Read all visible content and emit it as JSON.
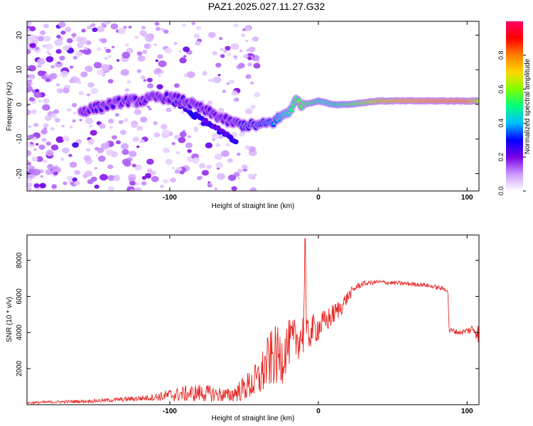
{
  "figure": {
    "title": "PAZ1.2025.027.11.27.G32"
  },
  "chart_data": [
    {
      "type": "heatmap",
      "title": "PAZ1.2025.027.11.27.G32",
      "xlabel": "Height of straight line (km)",
      "ylabel": "Frequency (Hz)",
      "xlim": [
        -196,
        108
      ],
      "ylim": [
        -25,
        24
      ],
      "x_ticks": [
        -100,
        0,
        100
      ],
      "y_ticks": [
        -20,
        -10,
        0,
        10,
        20
      ],
      "colorbar": {
        "label": "Normalized spectral amplitude",
        "range": [
          0,
          1
        ],
        "ticks": [
          0.0,
          0.2,
          0.4,
          0.6,
          0.8
        ],
        "colormap": [
          "#ffffff",
          "#cc99ff",
          "#7a00e6",
          "#0000ff",
          "#00bfff",
          "#00ff7f",
          "#7fff00",
          "#ffd700",
          "#ff8000",
          "#ff0000",
          "#ff0066"
        ]
      },
      "ridge": {
        "x": [
          -160,
          -150,
          -140,
          -130,
          -120,
          -110,
          -100,
          -90,
          -80,
          -70,
          -60,
          -50,
          -40,
          -30,
          -20,
          -15,
          -10,
          0,
          10,
          20,
          40,
          60,
          80,
          100,
          108
        ],
        "y": [
          -2,
          -1,
          0,
          1,
          1,
          2,
          2,
          1,
          -1,
          -3,
          -5,
          -6,
          -6,
          -5,
          -2,
          1,
          0,
          1,
          0,
          0,
          1,
          1,
          1,
          1,
          1
        ],
        "amplitude": [
          0.25,
          0.3,
          0.28,
          0.3,
          0.3,
          0.3,
          0.3,
          0.3,
          0.3,
          0.3,
          0.32,
          0.35,
          0.38,
          0.45,
          0.55,
          0.62,
          0.65,
          0.55,
          0.55,
          0.6,
          0.75,
          0.82,
          0.85,
          0.85,
          0.7
        ]
      },
      "secondary_ridge": {
        "x": [
          -100,
          -90,
          -80,
          -70,
          -60,
          -55
        ],
        "y": [
          1,
          -1,
          -4,
          -7,
          -9,
          -11
        ]
      },
      "grid": false
    },
    {
      "type": "line",
      "xlabel": "Height of straight line (km)",
      "ylabel": "SNR (10 * v/v)",
      "xlim": [
        -196,
        108
      ],
      "ylim": [
        0,
        9400
      ],
      "x_ticks": [
        -100,
        0,
        100
      ],
      "y_ticks": [
        2000,
        4000,
        6000,
        8000
      ],
      "series": [
        {
          "color": "#e8231f",
          "x": [
            -196,
            -180,
            -160,
            -140,
            -120,
            -110,
            -100,
            -90,
            -80,
            -70,
            -60,
            -50,
            -40,
            -35,
            -30,
            -25,
            -20,
            -15,
            -12,
            -10,
            -9,
            -8,
            -5,
            0,
            5,
            10,
            15,
            20,
            25,
            30,
            40,
            50,
            60,
            70,
            80,
            85,
            87,
            88,
            90,
            95,
            100,
            105,
            108
          ],
          "y": [
            100,
            150,
            180,
            250,
            350,
            420,
            520,
            600,
            650,
            600,
            500,
            900,
            1400,
            2200,
            2700,
            2600,
            3400,
            3600,
            3800,
            4000,
            9200,
            3600,
            4100,
            4300,
            4600,
            5000,
            5400,
            6000,
            6500,
            6700,
            6800,
            6750,
            6700,
            6650,
            6500,
            6400,
            6350,
            4100,
            4100,
            4000,
            4100,
            4200,
            3900
          ],
          "noise_amplitude": [
            60,
            80,
            90,
            110,
            150,
            200,
            350,
            450,
            500,
            450,
            400,
            700,
            1100,
            1500,
            1700,
            1600,
            1300,
            1200,
            1200,
            1300,
            0,
            1100,
            900,
            800,
            700,
            600,
            500,
            350,
            200,
            150,
            120,
            120,
            120,
            120,
            120,
            120,
            120,
            150,
            150,
            150,
            180,
            400,
            600
          ]
        }
      ],
      "grid": false
    }
  ]
}
